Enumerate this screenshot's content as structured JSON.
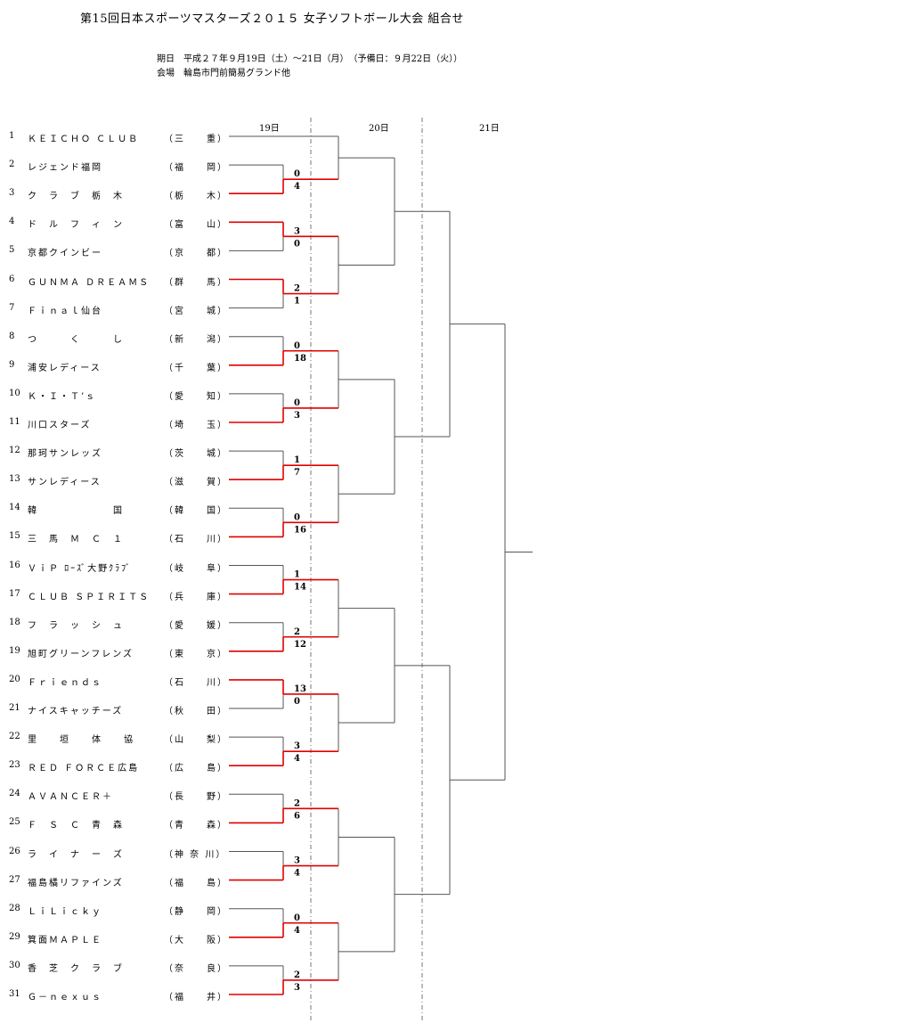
{
  "header": {
    "title": "第15回日本スポーツマスターズ２０１５ 女子ソフトボール大会 組合せ",
    "period": "期日　平成２７年９月19日（土）～21日（月）　（予備日：９月22日（火））",
    "venue": "会場　輪島市門前簡易グランド他"
  },
  "days": [
    "19日",
    "20日",
    "21日"
  ],
  "teams": [
    {
      "no": "1",
      "name": "ＫＥＩＣＨＯ ＣＬＵＢ",
      "pref": "（三　　重）"
    },
    {
      "no": "2",
      "name": "レジェンド福岡",
      "pref": "（福　　岡）"
    },
    {
      "no": "3",
      "name": "ク　ラ　ブ　栃　木",
      "pref": "（栃　　木）"
    },
    {
      "no": "4",
      "name": "ド　ル　フ　ィ　ン",
      "pref": "（富　　山）"
    },
    {
      "no": "5",
      "name": "京都クインビー",
      "pref": "（京　　都）"
    },
    {
      "no": "6",
      "name": "ＧＵＮＭＡ ＤＲＥＡＭＳ",
      "pref": "（群　　馬）"
    },
    {
      "no": "7",
      "name": "Ｆｉｎａｌ仙台",
      "pref": "（宮　　城）"
    },
    {
      "no": "8",
      "name": "つ　　　く　　　し",
      "pref": "（新　　潟）"
    },
    {
      "no": "9",
      "name": "浦安レディース",
      "pref": "（千　　葉）"
    },
    {
      "no": "10",
      "name": "Ｋ・Ｉ・Ｔ’ｓ",
      "pref": "（愛　　知）"
    },
    {
      "no": "11",
      "name": "川口スターズ",
      "pref": "（埼　　玉）"
    },
    {
      "no": "12",
      "name": "那珂サンレッズ",
      "pref": "（茨　　城）"
    },
    {
      "no": "13",
      "name": "サンレディース",
      "pref": "（滋　　賀）"
    },
    {
      "no": "14",
      "name": "韓　　　　　　　国",
      "pref": "（韓　　国）"
    },
    {
      "no": "15",
      "name": "三　馬　Ｍ　Ｃ　１",
      "pref": "（石　　川）"
    },
    {
      "no": "16",
      "name": "ＶｉＰ ﾛｰｽﾞ大野ｸﾗﾌﾞ",
      "pref": "（岐　　阜）"
    },
    {
      "no": "17",
      "name": "ＣＬＵＢ ＳＰＩＲＩＴＳ",
      "pref": "（兵　　庫）"
    },
    {
      "no": "18",
      "name": "フ　ラ　ッ　シ　ュ",
      "pref": "（愛　　媛）"
    },
    {
      "no": "19",
      "name": "旭町グリーンフレンズ",
      "pref": "（東　　京）"
    },
    {
      "no": "20",
      "name": "Ｆｒｉｅｎｄｓ",
      "pref": "（石　　川）"
    },
    {
      "no": "21",
      "name": "ナイスキャッチーズ",
      "pref": "（秋　　田）"
    },
    {
      "no": "22",
      "name": "里　　垣　　体　　協",
      "pref": "（山　　梨）"
    },
    {
      "no": "23",
      "name": "ＲＥＤ ＦＯＲＣＥ広島",
      "pref": "（広　　島）"
    },
    {
      "no": "24",
      "name": "ＡＶＡＮＣＥＲ＋",
      "pref": "（長　　野）"
    },
    {
      "no": "25",
      "name": "Ｆ　Ｓ　Ｃ　青　森",
      "pref": "（青　　森）"
    },
    {
      "no": "26",
      "name": "ラ　イ　ナ　ー　ズ",
      "pref": "（神 奈 川）"
    },
    {
      "no": "27",
      "name": "福島橘リファインズ",
      "pref": "（福　　島）"
    },
    {
      "no": "28",
      "name": "ＬｉＬｉｃｋｙ",
      "pref": "（静　　岡）"
    },
    {
      "no": "29",
      "name": "箕面ＭＡＰＬＥ",
      "pref": "（大　　阪）"
    },
    {
      "no": "30",
      "name": "香　芝　ク　ラ　ブ",
      "pref": "（奈　　良）"
    },
    {
      "no": "31",
      "name": "Ｇ－ｎｅｘｕｓ",
      "pref": "（福　　井）"
    }
  ],
  "first_round": [
    {
      "top": 2,
      "bottom": 3,
      "top_score": "0",
      "bottom_score": "4",
      "winner": "bottom"
    },
    {
      "top": 4,
      "bottom": 5,
      "top_score": "3",
      "bottom_score": "0",
      "winner": "top"
    },
    {
      "top": 6,
      "bottom": 7,
      "top_score": "2",
      "bottom_score": "1",
      "winner": "top"
    },
    {
      "top": 8,
      "bottom": 9,
      "top_score": "0",
      "bottom_score": "18",
      "winner": "bottom"
    },
    {
      "top": 10,
      "bottom": 11,
      "top_score": "0",
      "bottom_score": "3",
      "winner": "bottom"
    },
    {
      "top": 12,
      "bottom": 13,
      "top_score": "1",
      "bottom_score": "7",
      "winner": "bottom"
    },
    {
      "top": 14,
      "bottom": 15,
      "top_score": "0",
      "bottom_score": "16",
      "winner": "bottom"
    },
    {
      "top": 16,
      "bottom": 17,
      "top_score": "1",
      "bottom_score": "14",
      "winner": "bottom"
    },
    {
      "top": 18,
      "bottom": 19,
      "top_score": "2",
      "bottom_score": "12",
      "winner": "bottom"
    },
    {
      "top": 20,
      "bottom": 21,
      "top_score": "13",
      "bottom_score": "0",
      "winner": "top"
    },
    {
      "top": 22,
      "bottom": 23,
      "top_score": "3",
      "bottom_score": "4",
      "winner": "bottom"
    },
    {
      "top": 24,
      "bottom": 25,
      "top_score": "2",
      "bottom_score": "6",
      "winner": "bottom"
    },
    {
      "top": 26,
      "bottom": 27,
      "top_score": "3",
      "bottom_score": "4",
      "winner": "bottom"
    },
    {
      "top": 28,
      "bottom": 29,
      "top_score": "0",
      "bottom_score": "4",
      "winner": "bottom"
    },
    {
      "top": 30,
      "bottom": 31,
      "top_score": "2",
      "bottom_score": "3",
      "winner": "bottom"
    }
  ],
  "colors": {
    "win": "#e00000",
    "line": "#555555",
    "divider": "#555555"
  }
}
